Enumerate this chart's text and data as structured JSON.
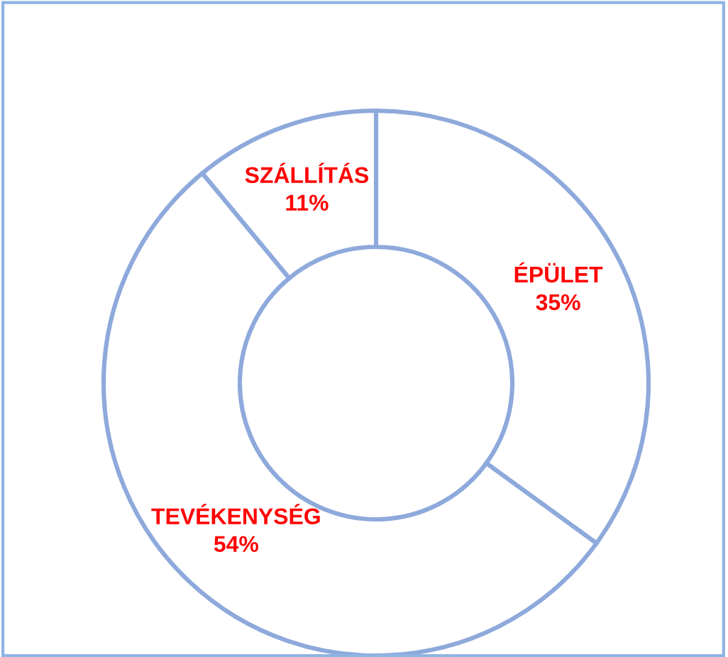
{
  "chart_data": {
    "type": "donut",
    "categories": [
      "ÉPÜLET",
      "TEVÉKENYSÉG",
      "SZÁLLÍTÁS"
    ],
    "values": [
      35,
      54,
      11
    ],
    "colors": [
      "#ffffff",
      "#ffffff",
      "#ffffff"
    ],
    "value_labels": [
      "35%",
      "54%",
      "11%"
    ],
    "legend": false
  }
}
